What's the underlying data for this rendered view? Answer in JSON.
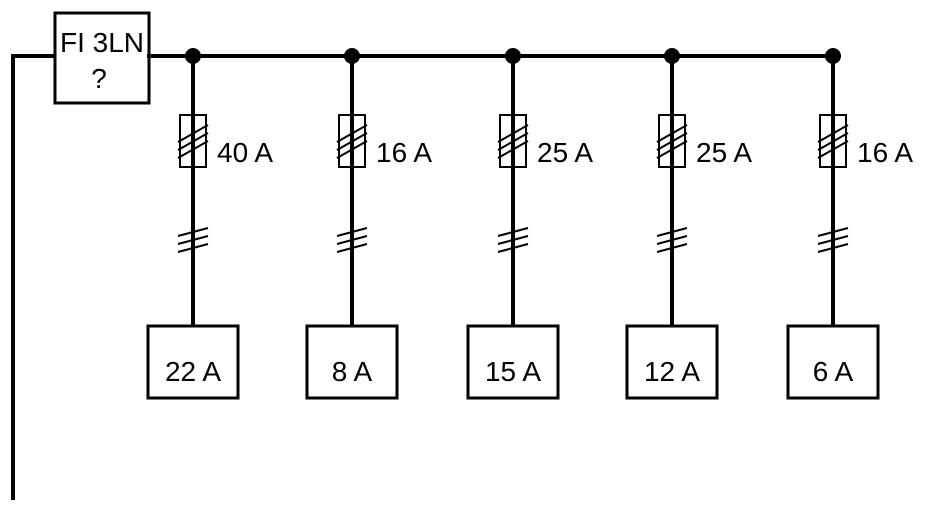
{
  "rcd": {
    "line1": "FI 3LN",
    "line2": "?"
  },
  "circuits": [
    {
      "fuse": "40 A",
      "load": "22 A"
    },
    {
      "fuse": "16 A",
      "load": "8 A"
    },
    {
      "fuse": "25 A",
      "load": "15 A"
    },
    {
      "fuse": "25 A",
      "load": "12 A"
    },
    {
      "fuse": "16 A",
      "load": "6 A"
    }
  ],
  "colors": {
    "line": "#000000",
    "background": "#ffffff"
  }
}
